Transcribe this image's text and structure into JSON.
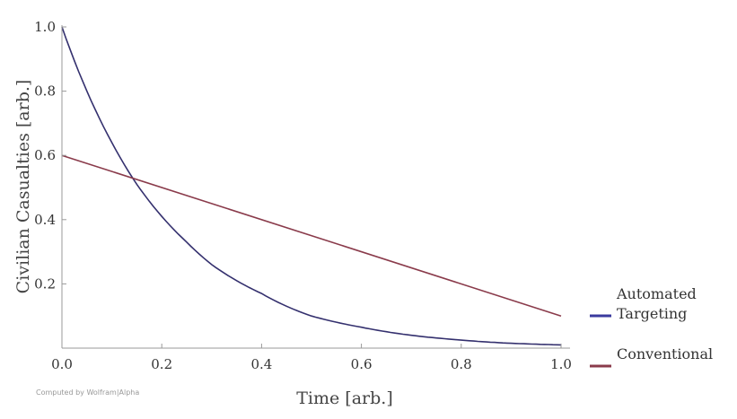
{
  "chart_data": {
    "type": "line",
    "xlabel": "Time [arb.]",
    "ylabel": "Civilian Casualties [arb.]",
    "xlim": [
      0,
      1
    ],
    "ylim": [
      0,
      1
    ],
    "x_ticks": [
      "0.0",
      "0.2",
      "0.4",
      "0.6",
      "0.8",
      "1.0"
    ],
    "y_ticks": [
      "0.2",
      "0.4",
      "0.6",
      "0.8",
      "1.0"
    ],
    "grid": false,
    "legend_position": "right",
    "series": [
      {
        "name": "Automated Targeting",
        "legend_lines": [
          "Automated",
          "Targeting"
        ],
        "color": "#34306e",
        "legend_color": "#3a3a9e",
        "x": [
          0.0,
          0.05,
          0.1,
          0.15,
          0.2,
          0.25,
          0.3,
          0.35,
          0.4,
          0.5,
          0.6,
          0.7,
          0.8,
          0.9,
          1.0
        ],
        "y": [
          1.0,
          0.8,
          0.64,
          0.51,
          0.41,
          0.33,
          0.26,
          0.21,
          0.17,
          0.1,
          0.065,
          0.04,
          0.025,
          0.015,
          0.01
        ]
      },
      {
        "name": "Conventional",
        "legend_lines": [
          "Conventional"
        ],
        "color": "#8a3b4b",
        "legend_color": "#8a3b4b",
        "x": [
          0.0,
          1.0
        ],
        "y": [
          0.6,
          0.1
        ]
      }
    ]
  },
  "credit": "Computed by Wolfram|Alpha"
}
